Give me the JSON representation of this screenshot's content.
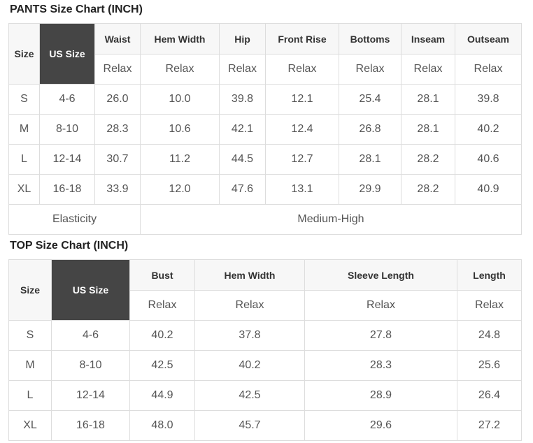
{
  "colors": {
    "corner_dark_bg": "#454545",
    "corner_dark_text": "#ffffff",
    "header_light_bg": "#f7f7f7",
    "border": "#dddddd",
    "header_text": "#333333",
    "data_text": "#555555",
    "title_text": "#222222",
    "row_bg": "#ffffff"
  },
  "pants_chart": {
    "title": "PANTS Size Chart (INCH)",
    "corner": {
      "size_label": "Size",
      "us_size_label": "US Size"
    },
    "measure_columns": [
      {
        "label": "Waist",
        "fit": "Relax"
      },
      {
        "label": "Hem Width",
        "fit": "Relax"
      },
      {
        "label": "Hip",
        "fit": "Relax"
      },
      {
        "label": "Front Rise",
        "fit": "Relax"
      },
      {
        "label": "Bottoms",
        "fit": "Relax"
      },
      {
        "label": "Inseam",
        "fit": "Relax"
      },
      {
        "label": "Outseam",
        "fit": "Relax"
      }
    ],
    "rows": [
      {
        "size": "S",
        "us_size": "4-6",
        "values": [
          "26.0",
          "10.0",
          "39.8",
          "12.1",
          "25.4",
          "28.1",
          "39.8"
        ]
      },
      {
        "size": "M",
        "us_size": "8-10",
        "values": [
          "28.3",
          "10.6",
          "42.1",
          "12.4",
          "26.8",
          "28.1",
          "40.2"
        ]
      },
      {
        "size": "L",
        "us_size": "12-14",
        "values": [
          "30.7",
          "11.2",
          "44.5",
          "12.7",
          "28.1",
          "28.2",
          "40.6"
        ]
      },
      {
        "size": "XL",
        "us_size": "16-18",
        "values": [
          "33.9",
          "12.0",
          "47.6",
          "13.1",
          "29.9",
          "28.2",
          "40.9"
        ]
      }
    ],
    "footer": {
      "label": "Elasticity",
      "value": "Medium-High"
    }
  },
  "top_chart": {
    "title": "TOP Size Chart (INCH)",
    "corner": {
      "size_label": "Size",
      "us_size_label": "US Size"
    },
    "measure_columns": [
      {
        "label": "Bust",
        "fit": "Relax"
      },
      {
        "label": "Hem Width",
        "fit": "Relax"
      },
      {
        "label": "Sleeve Length",
        "fit": "Relax"
      },
      {
        "label": "Length",
        "fit": "Relax"
      }
    ],
    "rows": [
      {
        "size": "S",
        "us_size": "4-6",
        "values": [
          "40.2",
          "37.8",
          "27.8",
          "24.8"
        ]
      },
      {
        "size": "M",
        "us_size": "8-10",
        "values": [
          "42.5",
          "40.2",
          "28.3",
          "25.6"
        ]
      },
      {
        "size": "L",
        "us_size": "12-14",
        "values": [
          "44.9",
          "42.5",
          "28.9",
          "26.4"
        ]
      },
      {
        "size": "XL",
        "us_size": "16-18",
        "values": [
          "48.0",
          "45.7",
          "29.6",
          "27.2"
        ]
      }
    ]
  }
}
